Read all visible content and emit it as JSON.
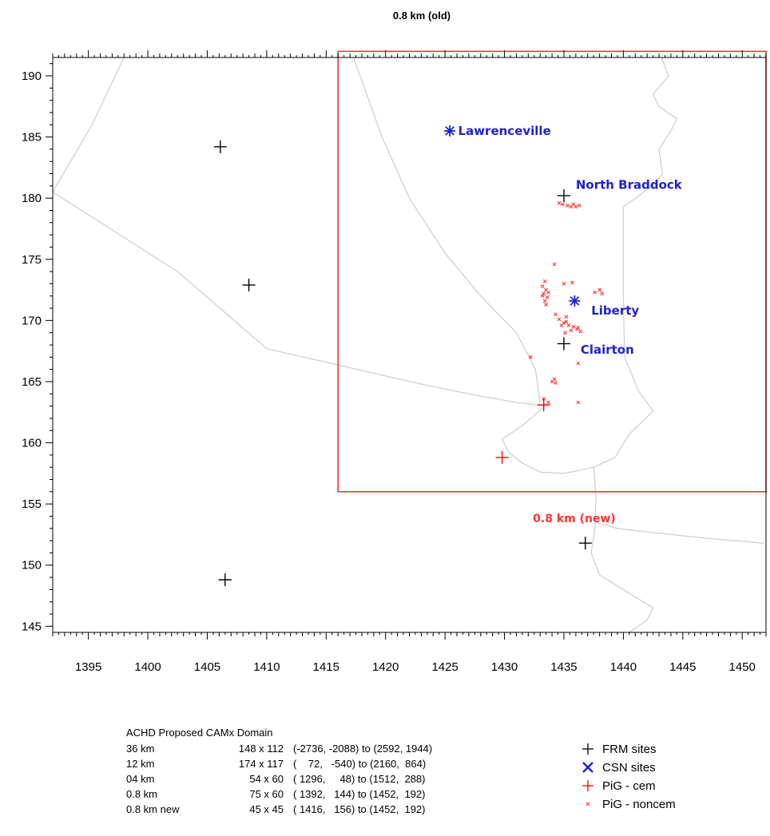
{
  "chart_data": {
    "type": "scatter",
    "title": "0.8 km (old)",
    "xlim": [
      1392,
      1452
    ],
    "ylim": [
      144.5,
      191.5
    ],
    "x_ticks": [
      1395,
      1400,
      1405,
      1410,
      1415,
      1420,
      1425,
      1430,
      1435,
      1440,
      1445,
      1450
    ],
    "y_ticks": [
      145,
      150,
      155,
      160,
      165,
      170,
      175,
      180,
      185,
      190
    ],
    "grid": false,
    "domain_box": {
      "label": "0.8 km (new)",
      "x_range": [
        1416,
        1452
      ],
      "y_range": [
        156,
        192
      ],
      "color": "#ff3333"
    },
    "series": [
      {
        "name": "FRM sites",
        "marker": "plus",
        "color": "#000000",
        "points": [
          [
            1406.1,
            184.2
          ],
          [
            1408.5,
            172.9
          ],
          [
            1435.0,
            180.2
          ],
          [
            1435.0,
            168.1
          ],
          [
            1436.8,
            151.8
          ],
          [
            1406.5,
            148.8
          ]
        ]
      },
      {
        "name": "CSN sites",
        "marker": "star",
        "color": "#1f1fd6",
        "points": [
          [
            1425.4,
            185.5
          ],
          [
            1435.9,
            171.6
          ]
        ]
      },
      {
        "name": "PiG - cem",
        "marker": "plus",
        "color": "#ff0000",
        "points": [
          [
            1433.3,
            163.1
          ],
          [
            1429.8,
            158.8
          ]
        ]
      },
      {
        "name": "PiG - noncem",
        "marker": "x",
        "color": "#ff3333",
        "points": [
          [
            1434.9,
            179.5
          ],
          [
            1435.3,
            179.4
          ],
          [
            1435.6,
            179.3
          ],
          [
            1436.0,
            179.3
          ],
          [
            1436.3,
            179.4
          ],
          [
            1434.6,
            179.6
          ],
          [
            1435.8,
            179.5
          ],
          [
            1434.2,
            174.6
          ],
          [
            1433.4,
            173.2
          ],
          [
            1433.2,
            172.8
          ],
          [
            1433.5,
            172.5
          ],
          [
            1433.3,
            172.2
          ],
          [
            1433.6,
            171.9
          ],
          [
            1433.4,
            171.6
          ],
          [
            1433.5,
            171.3
          ],
          [
            1433.2,
            172.0
          ],
          [
            1433.7,
            172.3
          ],
          [
            1435.0,
            173.0
          ],
          [
            1435.7,
            173.1
          ],
          [
            1437.6,
            172.3
          ],
          [
            1438.0,
            172.5
          ],
          [
            1438.2,
            172.2
          ],
          [
            1434.3,
            170.5
          ],
          [
            1434.6,
            170.1
          ],
          [
            1435.0,
            169.8
          ],
          [
            1435.4,
            169.6
          ],
          [
            1435.8,
            169.5
          ],
          [
            1436.1,
            169.3
          ],
          [
            1436.4,
            169.1
          ],
          [
            1434.8,
            169.6
          ],
          [
            1435.2,
            169.9
          ],
          [
            1435.6,
            169.2
          ],
          [
            1435.2,
            170.3
          ],
          [
            1436.2,
            169.4
          ],
          [
            1435.1,
            169.0
          ],
          [
            1432.2,
            167.0
          ],
          [
            1436.2,
            166.5
          ],
          [
            1434.2,
            165.2
          ],
          [
            1434.0,
            165.0
          ],
          [
            1434.3,
            164.9
          ],
          [
            1433.3,
            163.6
          ],
          [
            1433.7,
            163.3
          ],
          [
            1436.2,
            163.3
          ]
        ]
      }
    ],
    "annotations": [
      {
        "text": "Lawrenceville",
        "x": 1426.1,
        "y": 185.5,
        "color": "#1f1fd6"
      },
      {
        "text": "North Braddock",
        "x": 1436.0,
        "y": 181.1,
        "color": "#1f1fd6"
      },
      {
        "text": "Liberty",
        "x": 1437.3,
        "y": 170.8,
        "color": "#1f1fd6"
      },
      {
        "text": "Clairton",
        "x": 1436.4,
        "y": 167.6,
        "color": "#1f1fd6"
      }
    ],
    "boundary_color": "#d0d0d0",
    "boundaries": [
      [
        [
          1392,
          180.5
        ],
        [
          1395.3,
          186.0
        ],
        [
          1398.0,
          191.5
        ]
      ],
      [
        [
          1392,
          180.5
        ],
        [
          1402.5,
          174.0
        ],
        [
          1410.0,
          167.7
        ],
        [
          1423.0,
          164.8
        ],
        [
          1427.0,
          164.0
        ],
        [
          1431.0,
          163.3
        ],
        [
          1433.4,
          163.0
        ],
        [
          1431.5,
          161.4
        ],
        [
          1429.8,
          160.3
        ],
        [
          1430.3,
          159.3
        ],
        [
          1431.4,
          158.4
        ],
        [
          1433.0,
          157.6
        ],
        [
          1435.0,
          157.5
        ],
        [
          1437.5,
          158.0
        ],
        [
          1439.3,
          158.8
        ],
        [
          1440.5,
          160.7
        ],
        [
          1442.5,
          162.6
        ],
        [
          1441.3,
          164.2
        ],
        [
          1440.1,
          167.0
        ],
        [
          1440.0,
          172.0
        ],
        [
          1440.0,
          177.0
        ],
        [
          1440.0,
          179.3
        ],
        [
          1441.2,
          180.1
        ],
        [
          1442.5,
          181.1
        ],
        [
          1443.3,
          182.0
        ],
        [
          1443.0,
          184.0
        ],
        [
          1444.0,
          185.5
        ],
        [
          1444.5,
          186.5
        ],
        [
          1443.0,
          187.5
        ],
        [
          1442.5,
          188.5
        ],
        [
          1443.8,
          190.0
        ],
        [
          1443.2,
          191.5
        ]
      ],
      [
        [
          1417.3,
          191.5
        ],
        [
          1419.7,
          185.0
        ],
        [
          1422.0,
          180.0
        ],
        [
          1425.0,
          175.5
        ],
        [
          1428.0,
          172.0
        ],
        [
          1431.0,
          169.0
        ],
        [
          1432.6,
          166.0
        ],
        [
          1433.0,
          163.2
        ]
      ],
      [
        [
          1437.5,
          158.0
        ],
        [
          1437.7,
          155.5
        ],
        [
          1437.6,
          153.0
        ],
        [
          1437.3,
          151.0
        ],
        [
          1438.0,
          149.2
        ],
        [
          1440.0,
          148.0
        ],
        [
          1442.5,
          146.5
        ],
        [
          1442.0,
          145.5
        ],
        [
          1440.5,
          144.5
        ]
      ],
      [
        [
          1437.6,
          153.5
        ],
        [
          1439.5,
          153.0
        ],
        [
          1443.0,
          152.6
        ],
        [
          1447.0,
          152.2
        ],
        [
          1451.8,
          151.8
        ]
      ]
    ]
  },
  "domain_table": {
    "title": "ACHD Proposed CAMx Domain",
    "rows": [
      {
        "res": "36 km",
        "size": "148 x 112",
        "range": "(-2736, -2088) to (2592, 1944)"
      },
      {
        "res": "12 km",
        "size": "174 x 117",
        "range": "(    72,   -540) to (2160,  864)"
      },
      {
        "res": "04 km",
        "size": "54 x  60",
        "range": "( 1296,     48) to (1512,  288)"
      },
      {
        "res": "0.8 km",
        "size": "75 x  60",
        "range": "( 1392,   144) to (1452,  192)"
      },
      {
        "res": "0.8 km  new",
        "size": "45 x  45",
        "range": "( 1416,   156) to (1452,  192)"
      }
    ]
  },
  "legend": {
    "items": [
      {
        "label": "FRM sites",
        "marker": "plus",
        "color": "#000000"
      },
      {
        "label": "CSN sites",
        "marker": "x-bold",
        "color": "#1f1fd6"
      },
      {
        "label": "PiG - cem",
        "marker": "plus",
        "color": "#ff0000"
      },
      {
        "label": "PiG - noncem",
        "marker": "x-small",
        "color": "#ff3333"
      }
    ]
  }
}
